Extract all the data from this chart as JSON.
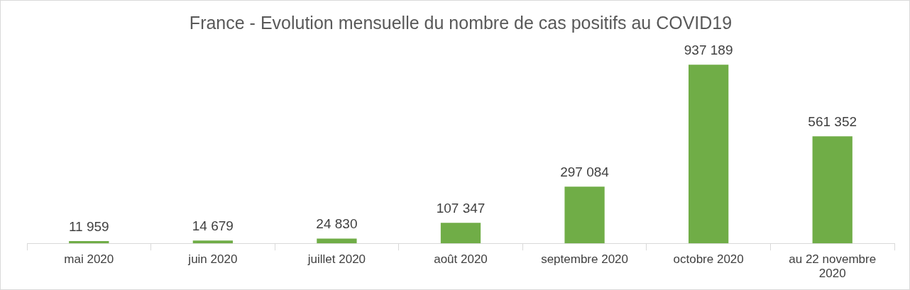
{
  "chart_data": {
    "type": "bar",
    "title": "France - Evolution mensuelle du nombre de cas positifs au COVID19",
    "categories": [
      "mai 2020",
      "juin 2020",
      "juillet 2020",
      "août 2020",
      "septembre 2020",
      "octobre 2020",
      "au 22 novembre 2020"
    ],
    "values": [
      11959,
      14679,
      24830,
      107347,
      297084,
      937189,
      561352
    ],
    "value_labels": [
      "11 959",
      "14 679",
      "24 830",
      "107 347",
      "297 084",
      "937 189",
      "561 352"
    ],
    "color": "#70ad47",
    "grid": false,
    "legend": false
  }
}
